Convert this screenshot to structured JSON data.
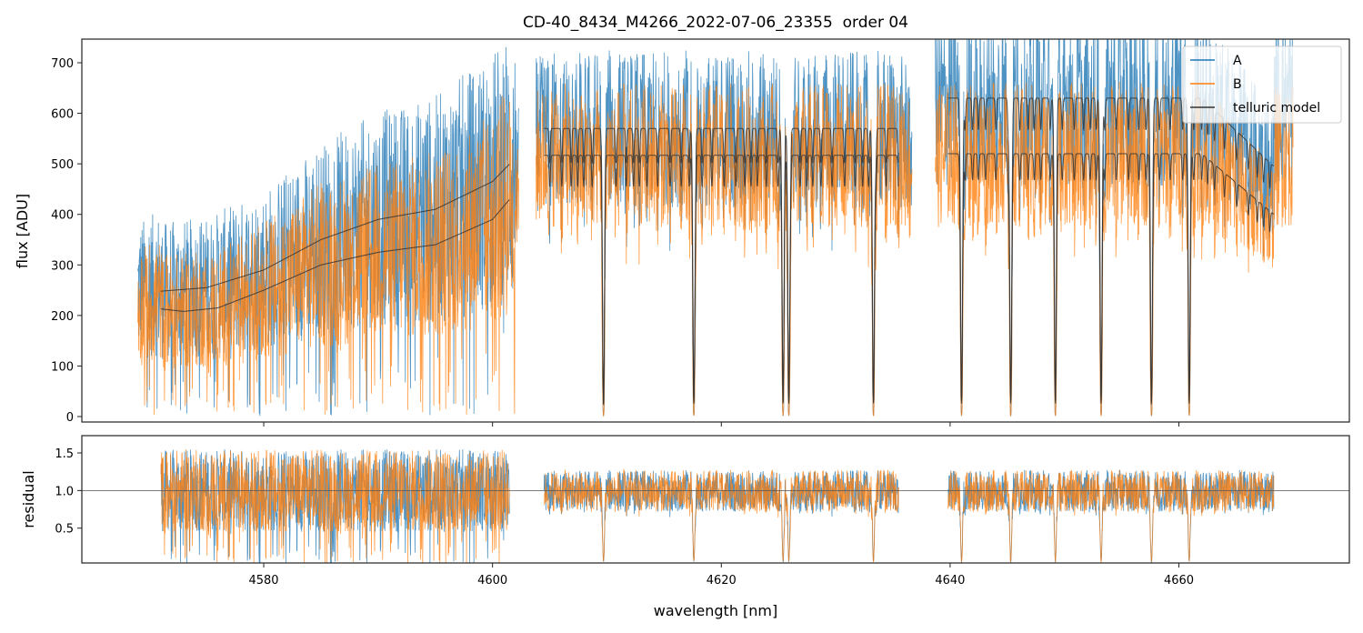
{
  "chart_data": [
    {
      "type": "line",
      "title": "CD-40_8434_M4266_2022-07-06_23355  order 04",
      "xlabel": "",
      "ylabel": "flux [ADU]",
      "xlim": [
        4564.1,
        4674.9
      ],
      "ylim": [
        -10.8,
        746.8
      ],
      "yticks": [
        0,
        100,
        200,
        300,
        400,
        500,
        600,
        700
      ],
      "legend": {
        "placement": "top-right",
        "entries": [
          "A",
          "B",
          "telluric model"
        ]
      },
      "colors": {
        "A": "#1f77b4",
        "B": "#ff7f0e",
        "telluric model": "#333333"
      },
      "segments": [
        [
          4569,
          4602.3
        ],
        [
          4603.8,
          4636.7
        ],
        [
          4638.7,
          4670
        ]
      ],
      "telluric_model": {
        "A": {
          "smooth": {
            "x": [
              4571,
              4575,
              4580,
              4585,
              4590,
              4595,
              4600,
              4601.5
            ],
            "y": [
              248,
              255,
              290,
              350,
              390,
              410,
              465,
              500
            ]
          },
          "levels": [
            {
              "range": [
                4604.5,
                4635.5
              ],
              "y": 570
            },
            {
              "range": [
                4639.8,
                4668.3
              ],
              "y": 630,
              "end_y": 495
            }
          ]
        },
        "B": {
          "smooth": {
            "x": [
              4571,
              4573,
              4576,
              4580,
              4585,
              4590,
              4595,
              4600,
              4601.5
            ],
            "y": [
              213,
              208,
              215,
              250,
              300,
              325,
              340,
              390,
              430
            ]
          },
          "levels": [
            {
              "range": [
                4604.5,
                4635.5
              ],
              "y": 517
            },
            {
              "range": [
                4639.8,
                4668.3
              ],
              "y": 520,
              "end_y": 400
            }
          ]
        },
        "deep_dips": [
          4609.7,
          4617.6,
          4625.4,
          4625.9,
          4633.3,
          4641.0,
          4645.3,
          4649.2,
          4653.2,
          4657.6,
          4660.9
        ]
      }
    },
    {
      "type": "line",
      "xlabel": "wavelength [nm]",
      "ylabel": "residual",
      "xlim": [
        4564.1,
        4674.9
      ],
      "ylim": [
        0.037,
        1.73
      ],
      "xticks": [
        4580,
        4600,
        4620,
        4640,
        4660
      ],
      "yticks": [
        "0.5",
        "1.0",
        "1.5"
      ],
      "reference_line": 1.0,
      "segments": [
        [
          4571,
          4601.5
        ],
        [
          4605.8,
          4635.3
        ],
        [
          4640.1,
          4668.2
        ]
      ]
    }
  ]
}
